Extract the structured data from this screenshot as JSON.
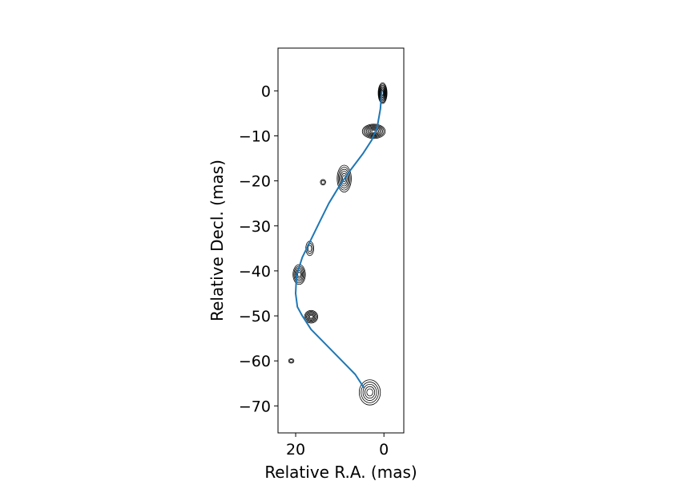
{
  "chart_data": {
    "type": "line",
    "title": "",
    "xlabel": "Relative R.A. (mas)",
    "ylabel": "Relative Decl. (mas)",
    "xlim": [
      24,
      -4.5
    ],
    "ylim": [
      -76,
      9.5
    ],
    "x_inverted": true,
    "xticks": [
      20,
      0
    ],
    "yticks": [
      0,
      -10,
      -20,
      -30,
      -40,
      -50,
      -60,
      -70
    ],
    "xtick_labels": [
      "20",
      "0"
    ],
    "ytick_labels": [
      "0",
      "−10",
      "−20",
      "−30",
      "−40",
      "−50",
      "−60",
      "−70"
    ],
    "grid": false,
    "series": [
      {
        "color": "#1f77b4",
        "x": [
          0.5,
          0.8,
          1.5,
          2.8,
          4.8,
          7.5,
          10.0,
          12.5,
          14.5,
          16.5,
          18.5,
          19.8,
          20.0,
          19.6,
          18.5,
          16.5,
          13.5,
          9.5,
          6.5,
          4.5
        ],
        "y": [
          0,
          -4,
          -8,
          -11,
          -14,
          -17.5,
          -21,
          -25,
          -29,
          -33,
          -37,
          -41,
          -45,
          -48,
          -50,
          -53,
          -56,
          -60,
          -63,
          -66
        ]
      }
    ],
    "contours": {
      "color": "#000000",
      "components": [
        {
          "x": 0.3,
          "y": -0.5,
          "rx": 1.0,
          "ry": 2.3,
          "levels": 8
        },
        {
          "x": 2.3,
          "y": -9.0,
          "rx": 2.6,
          "ry": 1.6,
          "levels": 8
        },
        {
          "x": 9.0,
          "y": -19.5,
          "rx": 1.6,
          "ry": 3.0,
          "levels": 6
        },
        {
          "x": 16.8,
          "y": -35.0,
          "rx": 0.9,
          "ry": 1.6,
          "levels": 3
        },
        {
          "x": 19.2,
          "y": -40.8,
          "rx": 1.4,
          "ry": 2.2,
          "levels": 6
        },
        {
          "x": 16.5,
          "y": -50.2,
          "rx": 1.5,
          "ry": 1.4,
          "levels": 6
        },
        {
          "x": 3.2,
          "y": -67.0,
          "rx": 2.4,
          "ry": 2.8,
          "levels": 5
        },
        {
          "x": 21.0,
          "y": -60.0,
          "rx": 0.6,
          "ry": 0.5,
          "levels": 2
        },
        {
          "x": 13.8,
          "y": -20.3,
          "rx": 0.6,
          "ry": 0.6,
          "levels": 2
        }
      ]
    }
  }
}
